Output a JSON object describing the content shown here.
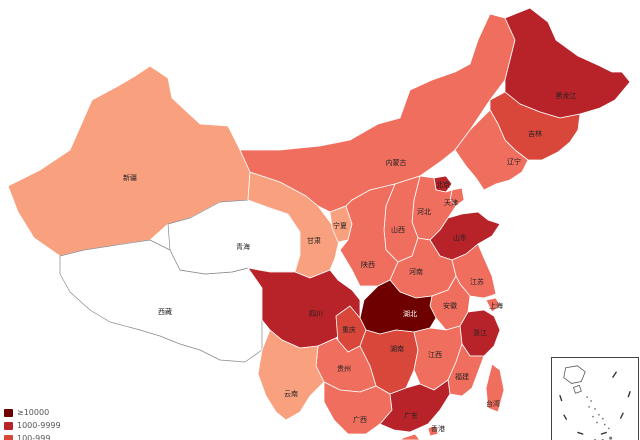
{
  "colors": {
    "ge10000": "#6e0000",
    "r1000_9999": "#b8232a",
    "r100_999": "#d9473b",
    "r10_99": "#f06e5e",
    "r1_9": "#f9a07f",
    "none": "#ffffff",
    "outline": "#888888"
  },
  "legend": {
    "items": [
      {
        "label": "≥10000",
        "color": "#6e0000"
      },
      {
        "label": "1000-9999",
        "color": "#b8232a"
      },
      {
        "label": "100-999",
        "color": "#d9473b"
      }
    ]
  },
  "provinces": [
    {
      "name": "新疆",
      "tier": "r1_9"
    },
    {
      "name": "西藏",
      "tier": "none"
    },
    {
      "name": "青海",
      "tier": "none"
    },
    {
      "name": "甘肃",
      "tier": "r1_9"
    },
    {
      "name": "内蒙古",
      "tier": "r10_99"
    },
    {
      "name": "黑龙江",
      "tier": "r1000_9999"
    },
    {
      "name": "吉林",
      "tier": "r100_999"
    },
    {
      "name": "辽宁",
      "tier": "r10_99"
    },
    {
      "name": "北京",
      "tier": "r1000_9999"
    },
    {
      "name": "天津",
      "tier": "r10_99"
    },
    {
      "name": "河北",
      "tier": "r10_99"
    },
    {
      "name": "山西",
      "tier": "r10_99"
    },
    {
      "name": "宁夏",
      "tier": "r1_9"
    },
    {
      "name": "陕西",
      "tier": "r10_99"
    },
    {
      "name": "山东",
      "tier": "r1000_9999"
    },
    {
      "name": "河南",
      "tier": "r10_99"
    },
    {
      "name": "江苏",
      "tier": "r10_99"
    },
    {
      "name": "安徽",
      "tier": "r10_99"
    },
    {
      "name": "上海",
      "tier": "r10_99"
    },
    {
      "name": "湖北",
      "tier": "ge10000"
    },
    {
      "name": "四川",
      "tier": "r1000_9999"
    },
    {
      "name": "重庆",
      "tier": "r100_999"
    },
    {
      "name": "浙江",
      "tier": "r1000_9999"
    },
    {
      "name": "湖南",
      "tier": "r100_999"
    },
    {
      "name": "江西",
      "tier": "r10_99"
    },
    {
      "name": "贵州",
      "tier": "r10_99"
    },
    {
      "name": "云南",
      "tier": "r1_9"
    },
    {
      "name": "福建",
      "tier": "r10_99"
    },
    {
      "name": "广西",
      "tier": "r10_99"
    },
    {
      "name": "广东",
      "tier": "r1000_9999"
    },
    {
      "name": "台湾",
      "tier": "r10_99"
    },
    {
      "name": "香港",
      "tier": "r10_99"
    }
  ]
}
